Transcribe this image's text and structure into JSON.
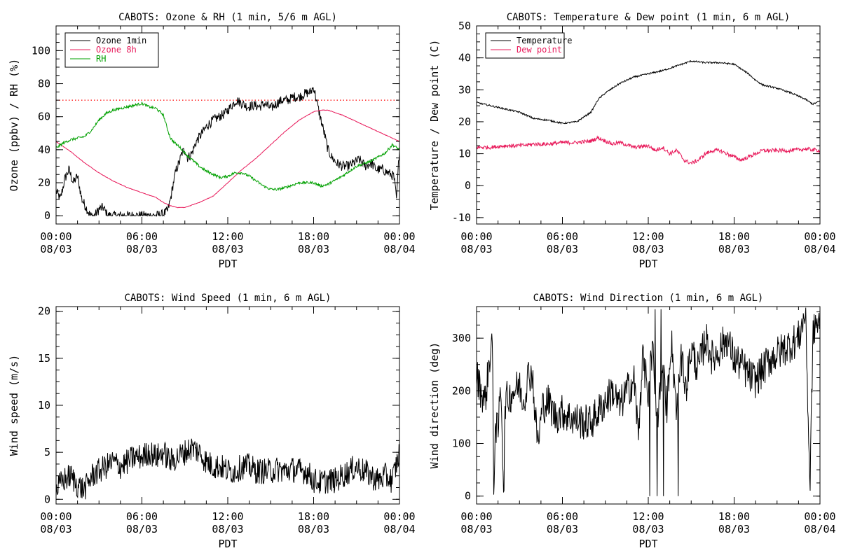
{
  "chart_data": [
    {
      "id": "ozone_rh",
      "type": "line",
      "title": "CABOTS: Ozone & RH (1 min, 5/6 m AGL)",
      "xlabel": "PDT",
      "ylabel": "Ozone (ppbv) / RH (%)",
      "xticks": [
        [
          "00:00",
          "08/03"
        ],
        [
          "06:00",
          "08/03"
        ],
        [
          "12:00",
          "08/03"
        ],
        [
          "18:00",
          "08/03"
        ],
        [
          "00:00",
          "08/04"
        ]
      ],
      "xlim": [
        0,
        24
      ],
      "ylim": [
        -5,
        115
      ],
      "yticks": [
        0,
        20,
        40,
        60,
        80,
        100
      ],
      "legend": "top-left",
      "reference_line": {
        "y": 70,
        "color": "#ff0000",
        "style": "dotted"
      },
      "series": [
        {
          "name": "Ozone 1min",
          "color": "#000000",
          "x": [
            0,
            0.3,
            0.6,
            0.9,
            1.2,
            1.5,
            1.8,
            2.1,
            2.4,
            2.7,
            3.0,
            3.3,
            3.6,
            3.8,
            4.0,
            4.5,
            5,
            6,
            7,
            7.5,
            7.8,
            8.0,
            8.2,
            8.4,
            8.6,
            8.8,
            9.0,
            9.2,
            9.5,
            9.8,
            10.2,
            10.6,
            11.0,
            11.4,
            11.8,
            12.2,
            12.6,
            13.0,
            13.4,
            13.8,
            14.2,
            14.6,
            15.0,
            15.4,
            15.8,
            16.2,
            16.6,
            17.0,
            17.4,
            17.8,
            18.0,
            18.2,
            18.4,
            18.6,
            18.8,
            19.0,
            19.3,
            19.6,
            20.0,
            20.4,
            20.8,
            21.2,
            21.6,
            22.0,
            22.4,
            22.8,
            23.2,
            23.6,
            23.8,
            24.0
          ],
          "y": [
            15,
            10,
            22,
            28,
            20,
            24,
            10,
            5,
            0,
            0,
            4,
            5,
            0,
            0,
            0,
            0,
            0,
            0,
            0,
            1,
            3,
            10,
            20,
            28,
            32,
            38,
            40,
            35,
            38,
            45,
            50,
            55,
            58,
            60,
            62,
            66,
            70,
            68,
            66,
            67,
            66,
            68,
            65,
            68,
            70,
            70,
            72,
            72,
            74,
            75,
            78,
            70,
            62,
            55,
            48,
            40,
            35,
            32,
            30,
            30,
            32,
            34,
            30,
            32,
            28,
            28,
            26,
            24,
            10,
            42
          ]
        },
        {
          "name": "Ozone 8h",
          "color": "#e8195a",
          "x": [
            0,
            1,
            2,
            3,
            4,
            5,
            6,
            7,
            7.5,
            8,
            8.5,
            9,
            10,
            11,
            12,
            13,
            14,
            15,
            16,
            17,
            18,
            18.5,
            19,
            20,
            21,
            22,
            23,
            24
          ],
          "y": [
            45,
            39,
            32,
            26,
            21,
            17,
            14,
            11,
            8,
            6,
            5,
            5,
            8,
            12,
            20,
            28,
            35,
            43,
            51,
            58,
            63,
            64,
            64,
            61,
            57,
            53,
            49,
            45
          ]
        },
        {
          "name": "RH",
          "color": "#00a000",
          "x": [
            0,
            0.5,
            1,
            2,
            2.5,
            3,
            3.5,
            4,
            4.5,
            5,
            5.5,
            6,
            6.5,
            7,
            7.5,
            7.8,
            8,
            8.3,
            8.6,
            9,
            9.5,
            10,
            10.5,
            11,
            11.5,
            12,
            12.5,
            13,
            13.5,
            14,
            14.5,
            15,
            15.5,
            16,
            17,
            18,
            18.5,
            19,
            20,
            21,
            22,
            23,
            23.5,
            24
          ],
          "y": [
            41,
            44,
            46,
            48,
            52,
            58,
            62,
            64,
            65,
            66,
            67,
            68,
            66,
            65,
            61,
            52,
            47,
            44,
            42,
            38,
            34,
            30,
            27,
            25,
            23,
            24,
            26,
            26,
            24,
            21,
            18,
            16,
            16,
            17,
            20,
            20,
            18,
            19,
            24,
            30,
            33,
            38,
            43,
            40
          ]
        }
      ]
    },
    {
      "id": "temp_dew",
      "type": "line",
      "title": "CABOTS: Temperature & Dew point (1 min, 6 m AGL)",
      "xlabel": "PDT",
      "ylabel": "Temperature / Dew point (C)",
      "xticks": [
        [
          "00:00",
          "08/03"
        ],
        [
          "06:00",
          "08/03"
        ],
        [
          "12:00",
          "08/03"
        ],
        [
          "18:00",
          "08/03"
        ],
        [
          "00:00",
          "08/04"
        ]
      ],
      "xlim": [
        0,
        24
      ],
      "ylim": [
        -12,
        50
      ],
      "yticks": [
        -10,
        0,
        10,
        20,
        30,
        40,
        50
      ],
      "legend": "top-left",
      "series": [
        {
          "name": "Temperature",
          "color": "#000000",
          "x": [
            0,
            1,
            2,
            3,
            4,
            5,
            6,
            7,
            7.5,
            8,
            8.5,
            9,
            10,
            11,
            12,
            13,
            14,
            15,
            16,
            17,
            18,
            18.5,
            19,
            19.5,
            20,
            20.5,
            21,
            22,
            23,
            23.5,
            24
          ],
          "y": [
            26,
            25,
            24,
            23,
            21,
            20.5,
            19.5,
            20,
            21.5,
            23,
            27,
            29,
            32,
            34,
            35,
            36,
            37.5,
            39,
            38.5,
            38.5,
            38,
            36.5,
            35,
            33,
            31.5,
            31,
            30.5,
            29,
            27,
            25.5,
            26.5
          ]
        },
        {
          "name": "Dew point",
          "color": "#e8195a",
          "x": [
            0,
            1,
            2,
            3,
            4,
            5,
            6,
            7,
            8,
            8.5,
            9,
            9.5,
            10,
            11,
            12,
            12.5,
            13,
            13.5,
            14,
            14.5,
            15,
            15.5,
            16,
            16.5,
            17,
            17.5,
            18,
            18.5,
            19,
            20,
            21,
            22,
            23,
            24
          ],
          "y": [
            12,
            12,
            12.5,
            12.5,
            13,
            13,
            13.5,
            13.5,
            14,
            15,
            14,
            13,
            13.5,
            12,
            12.5,
            11,
            12,
            10,
            11,
            8,
            7,
            8,
            10,
            11,
            11,
            10,
            9,
            8,
            9,
            11,
            11,
            11,
            11.5,
            11
          ]
        }
      ]
    },
    {
      "id": "wind_speed",
      "type": "line",
      "title": "CABOTS: Wind Speed (1 min, 6 m AGL)",
      "xlabel": "PDT",
      "ylabel": "Wind speed (m/s)",
      "xticks": [
        [
          "00:00",
          "08/03"
        ],
        [
          "06:00",
          "08/03"
        ],
        [
          "12:00",
          "08/03"
        ],
        [
          "18:00",
          "08/03"
        ],
        [
          "00:00",
          "08/04"
        ]
      ],
      "xlim": [
        0,
        24
      ],
      "ylim": [
        -0.5,
        20.5
      ],
      "yticks": [
        0,
        5,
        10,
        15,
        20
      ],
      "series": [
        {
          "name": "",
          "color": "#000000",
          "x": [
            0,
            0.5,
            1,
            1.5,
            2,
            2.5,
            3,
            3.5,
            4,
            4.5,
            5,
            5.5,
            6,
            6.5,
            7,
            7.5,
            8,
            8.5,
            9,
            9.5,
            10,
            10.5,
            11,
            11.5,
            12,
            12.5,
            13,
            13.5,
            14,
            14.5,
            15,
            15.5,
            16,
            16.5,
            17,
            17.5,
            18,
            18.5,
            19,
            19.5,
            20,
            20.5,
            21,
            21.5,
            22,
            22.5,
            23,
            23.5,
            24
          ],
          "y": [
            1,
            2,
            2.5,
            1.5,
            1,
            2.5,
            3,
            3.5,
            4,
            3.5,
            4,
            4.5,
            4.5,
            5,
            4.5,
            5,
            4,
            4.5,
            5,
            5.5,
            5,
            4,
            3.5,
            3.5,
            3,
            3,
            3.5,
            3.5,
            3,
            3,
            3,
            3.2,
            3,
            3.2,
            3,
            3,
            2,
            1.8,
            2,
            2,
            2.5,
            3,
            3.5,
            3,
            2.5,
            2,
            2.5,
            2,
            5
          ]
        }
      ]
    },
    {
      "id": "wind_dir",
      "type": "line",
      "title": "CABOTS: Wind Direction (1 min, 6 m AGL)",
      "xlabel": "PDT",
      "ylabel": "Wind direction (deg)",
      "xticks": [
        [
          "00:00",
          "08/03"
        ],
        [
          "06:00",
          "08/03"
        ],
        [
          "12:00",
          "08/03"
        ],
        [
          "18:00",
          "08/03"
        ],
        [
          "00:00",
          "08/04"
        ]
      ],
      "xlim": [
        0,
        24
      ],
      "ylim": [
        -15,
        360
      ],
      "yticks": [
        0,
        100,
        200,
        300
      ],
      "series": [
        {
          "name": "",
          "color": "#000000",
          "x": [
            0,
            0.3,
            0.6,
            0.9,
            1.1,
            1.2,
            1.3,
            1.5,
            1.7,
            1.9,
            2.0,
            2.3,
            2.6,
            3.0,
            3.3,
            3.6,
            3.9,
            4.1,
            4.3,
            4.6,
            5,
            5.5,
            6,
            6.5,
            7,
            7.5,
            8,
            8.5,
            9,
            9.5,
            10,
            10.5,
            11,
            11.3,
            11.6,
            12,
            12.3,
            12.6,
            13,
            13.3,
            13.6,
            14,
            14.3,
            14.6,
            15,
            15.5,
            16,
            16.5,
            17,
            17.5,
            18,
            18.5,
            19,
            19.5,
            20,
            20.5,
            21,
            21.5,
            22,
            22.5,
            23,
            23.3,
            23.5,
            23.7,
            24
          ],
          "y": [
            230,
            200,
            180,
            260,
            300,
            0,
            140,
            120,
            220,
            0,
            180,
            190,
            200,
            210,
            180,
            230,
            235,
            150,
            100,
            170,
            180,
            150,
            160,
            150,
            145,
            140,
            140,
            160,
            180,
            200,
            170,
            200,
            220,
            120,
            260,
            200,
            280,
            140,
            240,
            170,
            300,
            160,
            260,
            200,
            280,
            240,
            300,
            260,
            280,
            300,
            260,
            250,
            230,
            220,
            240,
            260,
            270,
            280,
            290,
            300,
            350,
            10,
            300,
            330,
            320
          ]
        }
      ]
    }
  ]
}
